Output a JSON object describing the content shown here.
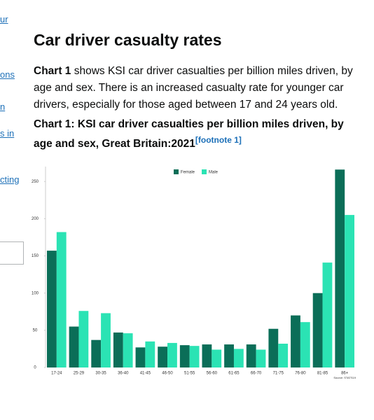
{
  "page": {
    "sidebar": [
      "ur",
      "ons",
      "n",
      "s in",
      "cting"
    ],
    "heading": "Car driver casualty rates",
    "intro": {
      "bold": "Chart 1",
      "text": " shows KSI car driver casualties per billion miles driven, by age and sex. There is an increased casualty rate for younger car drivers, especially for those aged between 17 and 24 years old."
    },
    "chart_heading": "Chart 1: KSI car driver casualties per billion miles driven, by age and sex, Great Britain:2021",
    "footnote": "[footnote 1]"
  },
  "chart_data": {
    "type": "bar",
    "categories": [
      "17-24",
      "25-29",
      "30-35",
      "36-40",
      "41-45",
      "46-50",
      "51-55",
      "56-60",
      "61-65",
      "66-70",
      "71-75",
      "76-80",
      "81-85",
      "86+"
    ],
    "series": [
      {
        "name": "Female",
        "color": "#0b6e58",
        "values": [
          157,
          55,
          37,
          47,
          27,
          28,
          30,
          31,
          31,
          31,
          52,
          70,
          100,
          266
        ]
      },
      {
        "name": "Male",
        "color": "#2be3b4",
        "values": [
          182,
          76,
          73,
          46,
          35,
          33,
          29,
          24,
          25,
          24,
          32,
          61,
          141,
          205
        ]
      }
    ],
    "ylim": [
      0,
      270
    ],
    "yticks": [
      0,
      50,
      100,
      150,
      200,
      250
    ],
    "source": "Source: STATS19",
    "legend": "top"
  }
}
